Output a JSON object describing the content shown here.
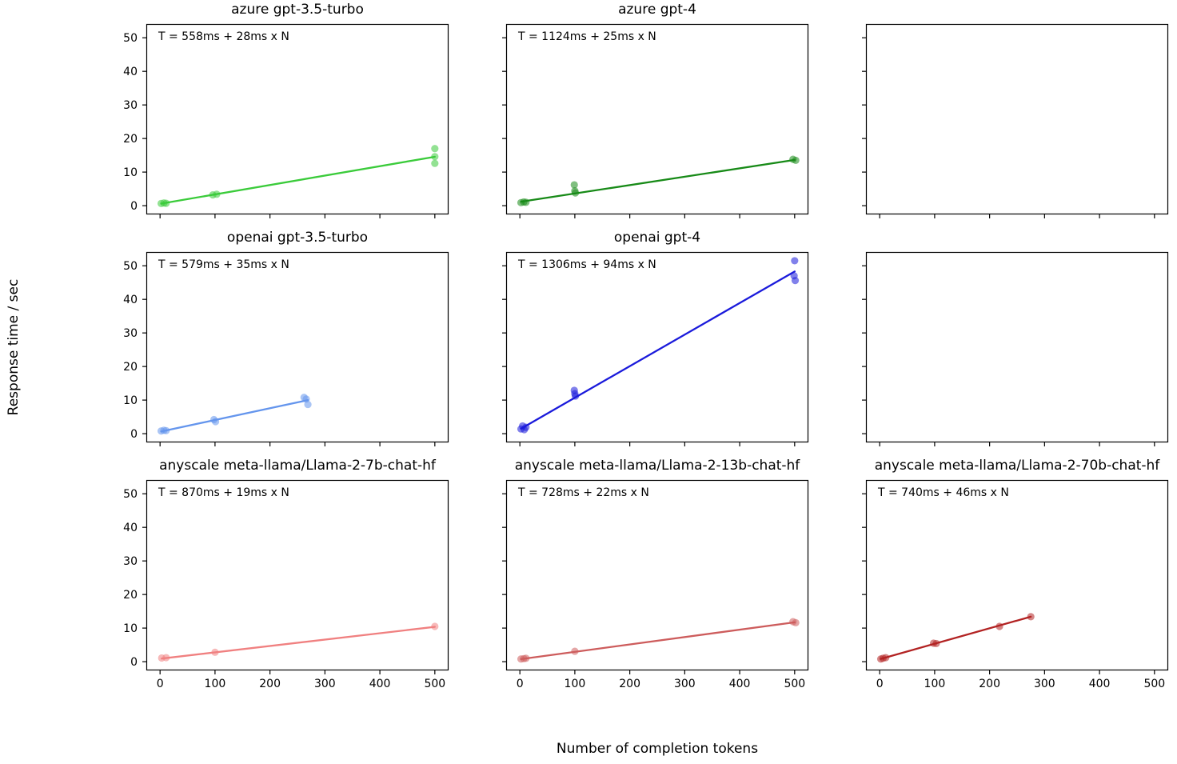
{
  "figure": {
    "ylabel": "Response time / sec",
    "xlabel": "Number of completion tokens"
  },
  "axes": {
    "xlim": [
      -25,
      525
    ],
    "ylim": [
      -2.6,
      54.1
    ],
    "xticks": [
      0,
      100,
      200,
      300,
      400,
      500
    ],
    "yticks": [
      0,
      10,
      20,
      30,
      40,
      50
    ],
    "grid": false,
    "frame_color": "#000000",
    "tick_label_x_rows": [
      2
    ],
    "tick_label_y_cols": [
      0
    ]
  },
  "chart_data": [
    {
      "type": "scatter",
      "title": "azure gpt-3.5-turbo",
      "annotation": "T = 558ms + 28ms x N",
      "color": "#3ACB3A",
      "intercept_ms": 558,
      "slope_ms_per_token": 28,
      "fit_line": {
        "x_start": 2,
        "x_end": 500
      },
      "points": [
        [
          2,
          0.65
        ],
        [
          7,
          0.8
        ],
        [
          11,
          0.7
        ],
        [
          96,
          3.2
        ],
        [
          103,
          3.4
        ],
        [
          500,
          17.0
        ],
        [
          500,
          14.6
        ],
        [
          500,
          12.6
        ]
      ]
    },
    {
      "type": "scatter",
      "title": "azure gpt-4",
      "annotation": "T = 1124ms + 25ms x N",
      "color": "#178A17",
      "intercept_ms": 1124,
      "slope_ms_per_token": 25,
      "fit_line": {
        "x_start": 2,
        "x_end": 500
      },
      "points": [
        [
          2,
          0.9
        ],
        [
          7,
          1.1
        ],
        [
          11,
          1.0
        ],
        [
          99,
          6.2
        ],
        [
          100,
          4.4
        ],
        [
          101,
          3.8
        ],
        [
          497,
          13.8
        ],
        [
          502,
          13.5
        ]
      ]
    },
    {
      "type": "empty"
    },
    {
      "type": "scatter",
      "title": "openai gpt-3.5-turbo",
      "annotation": "T = 579ms + 35ms x N",
      "color": "#6495ED",
      "intercept_ms": 579,
      "slope_ms_per_token": 35,
      "fit_line": {
        "x_start": 2,
        "x_end": 269
      },
      "points": [
        [
          2,
          0.8
        ],
        [
          7,
          1.0
        ],
        [
          11,
          0.9
        ],
        [
          98,
          4.2
        ],
        [
          101,
          3.6
        ],
        [
          262,
          10.8
        ],
        [
          266,
          10.3
        ],
        [
          269,
          8.7
        ]
      ]
    },
    {
      "type": "scatter",
      "title": "openai gpt-4",
      "annotation": "T = 1306ms + 94ms x N",
      "color": "#1A1ADB",
      "intercept_ms": 1306,
      "slope_ms_per_token": 94,
      "fit_line": {
        "x_start": 2,
        "x_end": 500
      },
      "points": [
        [
          2,
          1.4
        ],
        [
          5,
          2.3
        ],
        [
          8,
          1.2
        ],
        [
          11,
          1.9
        ],
        [
          99,
          12.9
        ],
        [
          100,
          11.9
        ],
        [
          101,
          11.2
        ],
        [
          500,
          51.5
        ],
        [
          499,
          47.0
        ],
        [
          501,
          45.6
        ]
      ]
    },
    {
      "type": "empty"
    },
    {
      "type": "scatter",
      "title": "anyscale meta-llama/Llama-2-7b-chat-hf",
      "annotation": "T = 870ms + 19ms x N",
      "color": "#F08080",
      "intercept_ms": 870,
      "slope_ms_per_token": 19,
      "fit_line": {
        "x_start": 3,
        "x_end": 500
      },
      "points": [
        [
          3,
          1.1
        ],
        [
          11,
          1.2
        ],
        [
          100,
          2.8
        ],
        [
          500,
          10.5
        ]
      ]
    },
    {
      "type": "scatter",
      "title": "anyscale meta-llama/Llama-2-13b-chat-hf",
      "annotation": "T = 728ms + 22ms x N",
      "color": "#CD5C5C",
      "intercept_ms": 728,
      "slope_ms_per_token": 22,
      "fit_line": {
        "x_start": 2,
        "x_end": 500
      },
      "points": [
        [
          2,
          0.8
        ],
        [
          7,
          0.9
        ],
        [
          11,
          1.0
        ],
        [
          100,
          3.1
        ],
        [
          497,
          11.9
        ],
        [
          502,
          11.6
        ]
      ]
    },
    {
      "type": "scatter",
      "title": "anyscale meta-llama/Llama-2-70b-chat-hf",
      "annotation": "T = 740ms + 46ms x N",
      "color": "#B22222",
      "intercept_ms": 740,
      "slope_ms_per_token": 46,
      "fit_line": {
        "x_start": 2,
        "x_end": 275
      },
      "points": [
        [
          2,
          0.8
        ],
        [
          6,
          1.0
        ],
        [
          11,
          1.2
        ],
        [
          98,
          5.5
        ],
        [
          103,
          5.4
        ],
        [
          218,
          10.5
        ],
        [
          275,
          13.4
        ]
      ]
    }
  ]
}
